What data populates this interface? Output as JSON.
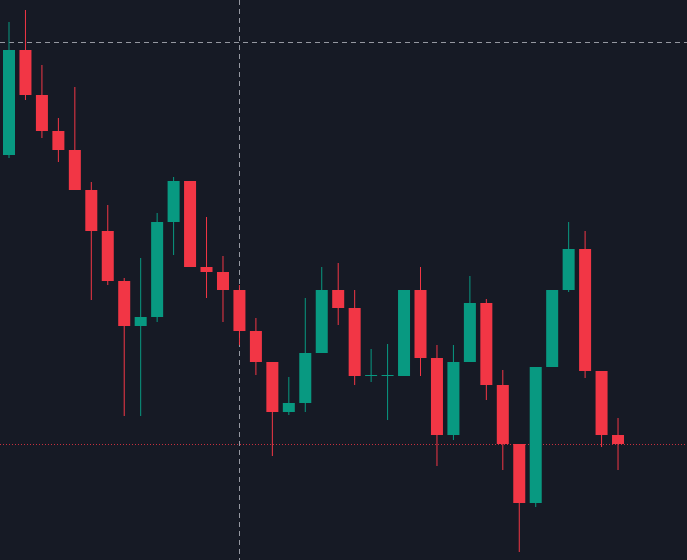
{
  "chart_data": {
    "type": "candlestick",
    "up_color": "#089981",
    "down_color": "#f23645",
    "ylim": [
      0,
      560
    ],
    "open": [
      405,
      510,
      465,
      429,
      410,
      370,
      329,
      279,
      234,
      243,
      338,
      379,
      293,
      288,
      270,
      229,
      198,
      148,
      157,
      207,
      270,
      252,
      184,
      184,
      184,
      270,
      202,
      125,
      198,
      257,
      175,
      116,
      57,
      193,
      270,
      311,
      189,
      125
    ],
    "high": [
      538,
      550,
      495,
      442,
      473,
      378,
      355,
      282,
      302,
      347,
      383,
      379,
      343,
      304,
      275,
      242,
      198,
      183,
      262,
      293,
      297,
      270,
      211,
      216,
      270,
      293,
      215,
      215,
      284,
      261,
      190,
      116,
      193,
      270,
      338,
      329,
      189,
      142
    ],
    "low": [
      402,
      460,
      422,
      398,
      370,
      260,
      275,
      144,
      144,
      238,
      305,
      293,
      262,
      238,
      215,
      185,
      104,
      145,
      148,
      207,
      235,
      175,
      178,
      140,
      184,
      184,
      94,
      120,
      198,
      160,
      90,
      8,
      53,
      193,
      268,
      182,
      113,
      90
    ],
    "close": [
      510,
      465,
      429,
      410,
      370,
      329,
      279,
      234,
      243,
      338,
      379,
      293,
      288,
      270,
      229,
      198,
      148,
      157,
      207,
      270,
      252,
      184,
      185,
      185,
      270,
      202,
      125,
      198,
      257,
      175,
      116,
      57,
      193,
      270,
      311,
      189,
      125,
      116
    ]
  }
}
